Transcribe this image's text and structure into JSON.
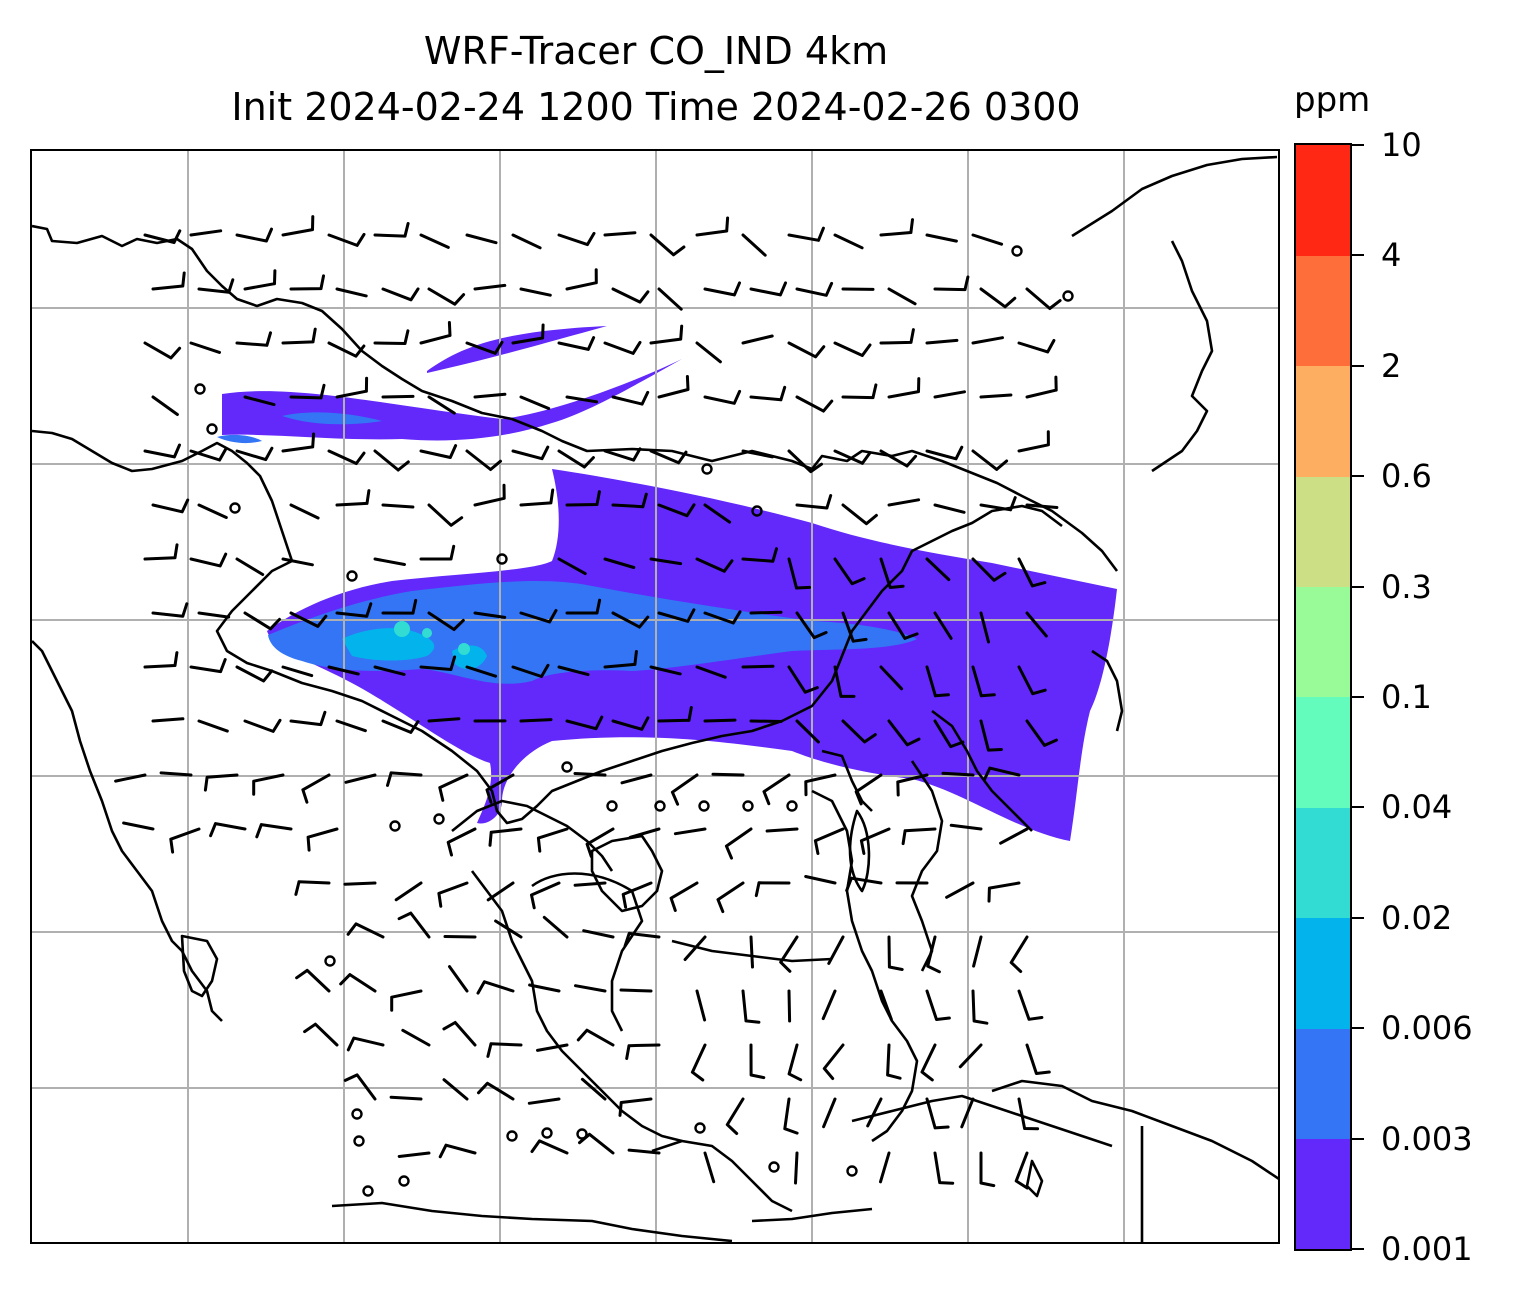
{
  "title_line1": "WRF-Tracer CO_IND 4km",
  "title_line2": "Init 2024-02-24 1200 Time 2024-02-26 0300",
  "colorbar": {
    "unit": "ppm",
    "tick_labels": [
      "0.001",
      "0.003",
      "0.006",
      "0.02",
      "0.04",
      "0.1",
      "0.3",
      "0.6",
      "2",
      "4",
      "10"
    ],
    "colors": [
      "#6229fa",
      "#3375f5",
      "#03b4ec",
      "#32dcd2",
      "#63fcbd",
      "#99fb98",
      "#cddf85",
      "#fdae61",
      "#fe6e3a",
      "#fe2815"
    ]
  },
  "chart_data": {
    "type": "heatmap",
    "title": "WRF-Tracer CO_IND 4km\nInit 2024-02-24 1200 Time 2024-02-26 0300",
    "variable": "CO_IND tracer concentration",
    "unit": "ppm",
    "levels": [
      0.001,
      0.003,
      0.006,
      0.02,
      0.04,
      0.1,
      0.3,
      0.6,
      2,
      4,
      10
    ],
    "grid": true,
    "colorbar_position": "right",
    "overlay": "wind barbs",
    "plume": {
      "max_level_reached": "0.02-0.04 ppm (small patches)",
      "dominant_levels": [
        "0.001-0.003",
        "0.003-0.006"
      ],
      "orientation": "west to east band across northern part of domain"
    }
  }
}
